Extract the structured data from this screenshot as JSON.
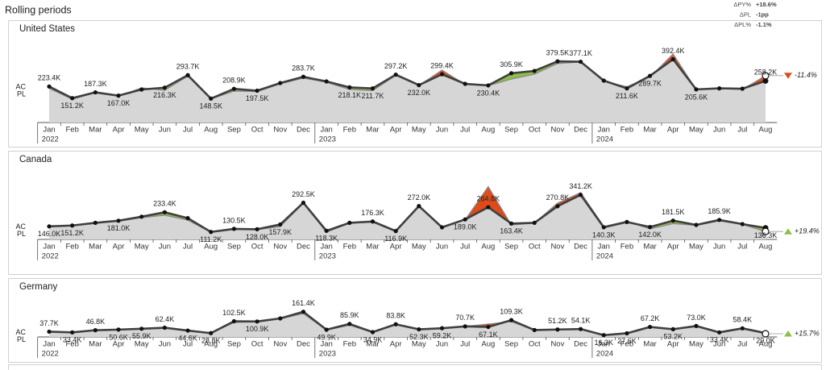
{
  "page_title": "Rolling periods",
  "summary": [
    {
      "label": "ΔPY%",
      "value": "+18.6%"
    },
    {
      "label": "ΔPL",
      "value": "-1pp"
    },
    {
      "label": "ΔPL%",
      "value": "-1.1%"
    }
  ],
  "chart_data": [
    {
      "type": "line",
      "title": "United States",
      "categories": [
        "Jan",
        "Feb",
        "Mar",
        "Apr",
        "May",
        "Jun",
        "Jul",
        "Aug",
        "Sep",
        "Oct",
        "Nov",
        "Dec",
        "Jan",
        "Feb",
        "Mar",
        "Apr",
        "May",
        "Jun",
        "Jul",
        "Aug",
        "Sep",
        "Oct",
        "Nov",
        "Dec",
        "Jan",
        "Feb",
        "Mar",
        "Apr",
        "May",
        "Jun",
        "Jul",
        "Aug"
      ],
      "category_years": [
        "2022",
        null,
        null,
        null,
        null,
        null,
        null,
        null,
        null,
        null,
        null,
        null,
        "2023",
        null,
        null,
        null,
        null,
        null,
        null,
        null,
        null,
        null,
        null,
        null,
        "2024",
        null,
        null,
        null,
        null,
        null,
        null,
        null
      ],
      "series": [
        {
          "name": "AC",
          "color": "#404040",
          "values": [
            223.4,
            151.2,
            187.3,
            167.0,
            205,
            216.3,
            293.7,
            148.5,
            208.9,
            197.5,
            245,
            283.7,
            255,
            218.1,
            211.7,
            297.2,
            232.0,
            299.4,
            240,
            230.4,
            305.9,
            320,
            379.5,
            377.1,
            260,
            211.6,
            289.7,
            392.4,
            205.6,
            212,
            210,
            258.2
          ],
          "value_labels": [
            "223.4K",
            "151.2K",
            "187.3K",
            "167.0K",
            null,
            "216.3K",
            "293.7K",
            "148.5K",
            "208.9K",
            "197.5K",
            null,
            "283.7K",
            null,
            "218.1K",
            "211.7K",
            "297.2K",
            "232.0K",
            "299.4K",
            null,
            "230.4K",
            "305.9K",
            null,
            "379.5K",
            "377.1K",
            null,
            "211.6K",
            "289.7K",
            "392.4K",
            "205.6K",
            null,
            null,
            "258.2K"
          ]
        },
        {
          "name": "PL",
          "color": "#8a8a8a",
          "values": [
            212,
            145,
            185,
            163,
            215,
            200,
            288,
            146,
            195,
            192,
            240,
            276,
            250,
            205,
            198,
            292,
            230,
            325,
            236,
            228,
            270,
            300,
            366,
            376,
            255,
            222,
            282,
            425,
            204,
            210,
            205,
            291
          ]
        }
      ],
      "positive_color": "#8cbf45",
      "negative_color": "#dd4b1a",
      "delta_label": "-11.4%",
      "delta_color": "#dd4b1a"
    },
    {
      "type": "line",
      "title": "Canada",
      "categories": [
        "Jan",
        "Feb",
        "Mar",
        "Apr",
        "May",
        "Jun",
        "Jul",
        "Aug",
        "Sep",
        "Oct",
        "Nov",
        "Dec",
        "Jan",
        "Feb",
        "Mar",
        "Apr",
        "May",
        "Jun",
        "Jul",
        "Aug",
        "Sep",
        "Oct",
        "Nov",
        "Dec",
        "Jan",
        "Feb",
        "Mar",
        "Apr",
        "May",
        "Jun",
        "Jul",
        "Aug"
      ],
      "category_years": [
        "2022",
        null,
        null,
        null,
        null,
        null,
        null,
        null,
        null,
        null,
        null,
        null,
        "2023",
        null,
        null,
        null,
        null,
        null,
        null,
        null,
        null,
        null,
        null,
        null,
        "2024",
        null,
        null,
        null,
        null,
        null,
        null,
        null
      ],
      "series": [
        {
          "name": "AC",
          "color": "#404040",
          "values": [
            146.0,
            151.2,
            168,
            181.0,
            206,
            233.4,
            197,
            111.2,
            130.5,
            128.0,
            157.9,
            292.5,
            118.3,
            168,
            176.3,
            116.9,
            272.0,
            140,
            189.0,
            264.8,
            163.4,
            168,
            270.8,
            341.2,
            140.3,
            173,
            142.0,
            181.5,
            155,
            185.9,
            160,
            136.3
          ],
          "value_labels": [
            "146.0K",
            "151.2K",
            null,
            "181.0K",
            null,
            "233.4K",
            null,
            "111.2K",
            "130.5K",
            "128.0K",
            "157.9K",
            "292.5K",
            "118.3K",
            null,
            "176.3K",
            "116.9K",
            "272.0K",
            null,
            "189.0K",
            "264.8K",
            "163.4K",
            null,
            "270.8K",
            "341.2K",
            "140.3K",
            null,
            "142.0K",
            "181.5K",
            null,
            "185.9K",
            null,
            "136.3K"
          ]
        },
        {
          "name": "PL",
          "color": "#8a8a8a",
          "values": [
            144,
            150,
            166,
            178,
            200,
            215,
            185,
            110,
            128,
            126,
            145,
            290,
            110,
            166,
            172,
            116,
            268,
            138,
            186,
            392,
            155,
            166,
            290,
            355,
            145,
            178,
            130,
            163,
            152,
            180,
            158,
            114
          ]
        }
      ],
      "positive_color": "#8cbf45",
      "negative_color": "#dd4b1a",
      "delta_label": "+19.4%",
      "delta_color": "#8cbf45"
    },
    {
      "type": "line",
      "title": "Germany",
      "categories": [
        "Jan",
        "Feb",
        "Mar",
        "Apr",
        "May",
        "Jun",
        "Jul",
        "Aug",
        "Sep",
        "Oct",
        "Nov",
        "Dec",
        "Jan",
        "Feb",
        "Mar",
        "Apr",
        "May",
        "Jun",
        "Jul",
        "Aug",
        "Sep",
        "Oct",
        "Nov",
        "Dec",
        "Jan",
        "Feb",
        "Mar",
        "Apr",
        "May",
        "Jun",
        "Jul",
        "Aug"
      ],
      "category_years": [
        "2022",
        null,
        null,
        null,
        null,
        null,
        null,
        null,
        null,
        null,
        null,
        null,
        "2023",
        null,
        null,
        null,
        null,
        null,
        null,
        null,
        null,
        null,
        null,
        null,
        "2024",
        null,
        null,
        null,
        null,
        null,
        null,
        null
      ],
      "series": [
        {
          "name": "AC",
          "color": "#404040",
          "values": [
            37.7,
            33.4,
            46.8,
            50.6,
            55.9,
            62.4,
            44.6,
            28.8,
            102.5,
            100.9,
            120,
            161.4,
            49.9,
            85.9,
            34.9,
            83.8,
            52.3,
            59.2,
            70.7,
            67.1,
            109.3,
            48,
            51.2,
            54.1,
            16.3,
            27.6,
            67.2,
            53.2,
            73.0,
            33.4,
            58.4,
            29.0
          ],
          "value_labels": [
            "37.7K",
            "33.4K",
            "46.8K",
            "50.6K",
            "55.9K",
            "62.4K",
            "44.6K",
            "28.8K",
            "102.5K",
            "100.9K",
            null,
            "161.4K",
            "49.9K",
            "85.9K",
            "34.9K",
            "83.8K",
            "52.3K",
            "59.2K",
            "70.7K",
            "67.1K",
            "109.3K",
            null,
            "51.2K",
            "54.1K",
            "16.3K",
            "27.6K",
            "67.2K",
            "53.2K",
            "73.0K",
            "33.4K",
            "58.4K",
            "29.0K"
          ]
        },
        {
          "name": "PL",
          "color": "#8a8a8a",
          "values": [
            36,
            32,
            45,
            49,
            53,
            58,
            43,
            28,
            95,
            99,
            118,
            150,
            48,
            78,
            33,
            82,
            51,
            58,
            70,
            85,
            100,
            47,
            50,
            53,
            16,
            27,
            65,
            52,
            70,
            33,
            57,
            25
          ]
        }
      ],
      "positive_color": "#8cbf45",
      "negative_color": "#dd4b1a",
      "delta_label": "+15.7%",
      "delta_color": "#8cbf45"
    }
  ]
}
